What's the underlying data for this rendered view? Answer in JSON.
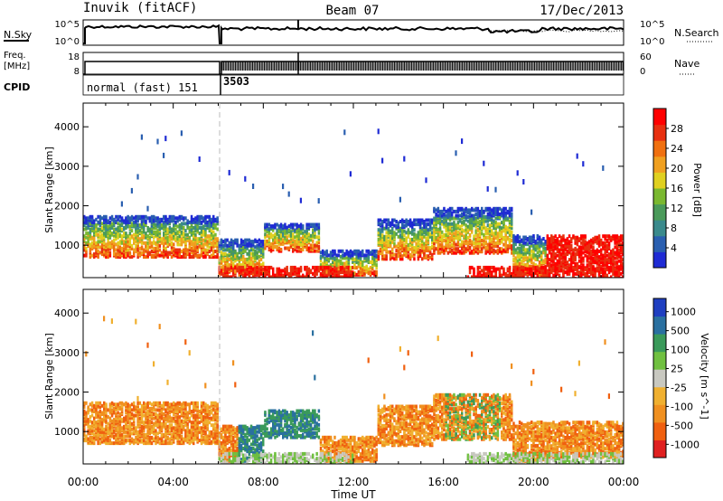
{
  "header": {
    "station": "Inuvik (fitACF)",
    "beam": "Beam 07",
    "date": "17/Dec/2013"
  },
  "noise_panel": {
    "left_label": "N.Sky",
    "right_label": "N.Search",
    "left_ticks": [
      "10^5",
      "10^0"
    ],
    "right_ticks": [
      "10^5",
      "10^0"
    ]
  },
  "freq_panel": {
    "left_label_1": "Freq.",
    "left_label_2": "[MHz]",
    "right_label": "Nave",
    "left_ticks": [
      "18",
      "8"
    ],
    "right_ticks": [
      "60",
      "0"
    ]
  },
  "cpid": {
    "label": "CPID",
    "modes": [
      "normal (fast) 151",
      "3503"
    ]
  },
  "x_axis": {
    "title": "Time UT",
    "ticks": [
      "00:00",
      "04:00",
      "08:00",
      "12:00",
      "16:00",
      "20:00",
      "00:00"
    ]
  },
  "colors": {
    "power": [
      "#1f2bd4",
      "#2a5fb0",
      "#3a8a8c",
      "#4a9a5a",
      "#7ab830",
      "#e0d020",
      "#f0a020",
      "#f07010",
      "#e83010",
      "#ff0000"
    ],
    "velocity": [
      "#e02020",
      "#f06010",
      "#f09020",
      "#f0b030",
      "#c8c8c0",
      "#70c040",
      "#3a9a5a",
      "#2a70a0",
      "#1f3fc0"
    ]
  },
  "chart_data": [
    {
      "type": "heatmap",
      "title": "",
      "xlabel": "Time UT",
      "ylabel": "Slant Range [km]",
      "xlim": [
        0,
        24
      ],
      "ylim": [
        180,
        4600
      ],
      "yticks": [
        "1000",
        "2000",
        "3000",
        "4000"
      ],
      "colorbar": {
        "title": "Power [dB]",
        "ticks": [
          "4",
          "8",
          "12",
          "16",
          "20",
          "24",
          "28"
        ],
        "range": [
          0,
          32
        ]
      }
    },
    {
      "type": "heatmap",
      "title": "",
      "xlabel": "Time UT",
      "ylabel": "Slant Range [km]",
      "xlim": [
        0,
        24
      ],
      "ylim": [
        180,
        4600
      ],
      "yticks": [
        "1000",
        "2000",
        "3000",
        "4000"
      ],
      "colorbar": {
        "title": "Velocity [m s^-1]",
        "ticks": [
          "1000",
          "500",
          "100",
          "25",
          "-25",
          "-100",
          "-500",
          "-1000"
        ],
        "range": [
          -1200,
          1200
        ]
      }
    }
  ]
}
